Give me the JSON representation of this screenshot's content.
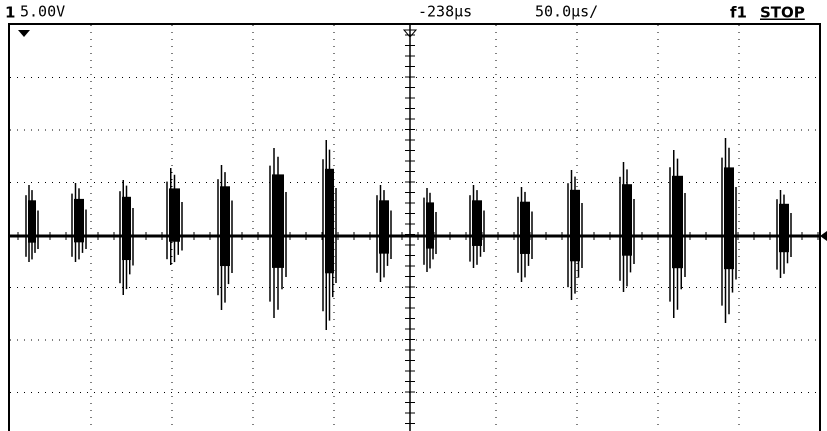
{
  "header": {
    "channel": "1",
    "scale": "5.00V",
    "delay": "-238µs",
    "timebase": "50.0µs/",
    "trigger": "f1",
    "status": "STOP"
  }
}
